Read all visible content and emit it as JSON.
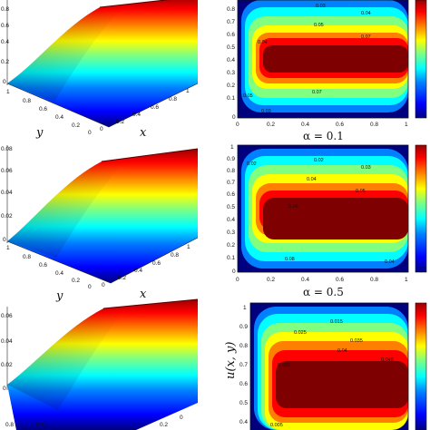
{
  "chart_data": [
    {
      "type": "surface",
      "panel": "row-1-left",
      "xlabel": "x",
      "ylabel": "y",
      "z_ticks": [
        "0.8",
        "0.6",
        "0.4",
        "0.2",
        "0"
      ],
      "y_ticks": [
        "1",
        "0.8",
        "0.6",
        "0.4",
        "0.2",
        "0"
      ],
      "x_ticks": [
        "0",
        "0.2",
        "0.4",
        "0.6",
        "0.8",
        "1"
      ],
      "colormap": "jet"
    },
    {
      "type": "contour",
      "panel": "row-1-right",
      "x_ticks": [
        "0",
        "0.2",
        "0.4",
        "0.6",
        "0.8",
        "1"
      ],
      "y_ticks": [
        "0.8",
        "0.7",
        "0.6",
        "0.5",
        "0.4",
        "0.3",
        "0.2",
        "0.1",
        "0"
      ],
      "levels": [
        "0.03",
        "0.04",
        "0.05",
        "0.07",
        "0.07",
        "0.05",
        "0.04",
        "0.03"
      ],
      "caption": "α = 0.1"
    },
    {
      "type": "surface",
      "panel": "row-2-left",
      "xlabel": "x",
      "ylabel": "y",
      "z_ticks": [
        "0.08",
        "0.06",
        "0.04",
        "0.02",
        "0"
      ],
      "y_ticks": [
        "1",
        "0.8",
        "0.6",
        "0.4",
        "0.2",
        "0"
      ],
      "x_ticks": [
        "0",
        "0.2",
        "0.4",
        "0.6",
        "0.8",
        "1"
      ],
      "colormap": "jet"
    },
    {
      "type": "contour",
      "panel": "row-2-right",
      "x_ticks": [
        "0",
        "0.2",
        "0.4",
        "0.6",
        "0.8",
        "1"
      ],
      "y_ticks": [
        "1",
        "0.9",
        "0.8",
        "0.7",
        "0.6",
        "0.5",
        "0.4",
        "0.3",
        "0.2",
        "0.1",
        "0"
      ],
      "levels": [
        "0.02",
        "0.03",
        "0.04",
        "0.05",
        "0.06",
        "0.08",
        "0.04",
        "0.02"
      ],
      "caption": "α = 0.5"
    },
    {
      "type": "surface",
      "panel": "row-3-left",
      "z_ticks": [
        "0.06",
        "0.04",
        "0.02",
        "0"
      ],
      "x_ticks": [
        "0.8",
        "0.6",
        "0.4",
        "0.2",
        "0"
      ],
      "colormap": "jet"
    },
    {
      "type": "contour",
      "panel": "row-3-right",
      "ylabel": "u(x, y)",
      "y_ticks": [
        "1",
        "0.9",
        "0.8",
        "0.7",
        "0.6",
        "0.5",
        "0.4"
      ],
      "levels": [
        "0.015",
        "0.025",
        "0.035",
        "0.04",
        "0.045",
        "0.035",
        "0.005"
      ]
    }
  ],
  "colors": {
    "jet": [
      "#00007f",
      "#0000ff",
      "#0080ff",
      "#00ffff",
      "#80ff80",
      "#ffff00",
      "#ff8000",
      "#ff0000",
      "#7f0000"
    ]
  }
}
